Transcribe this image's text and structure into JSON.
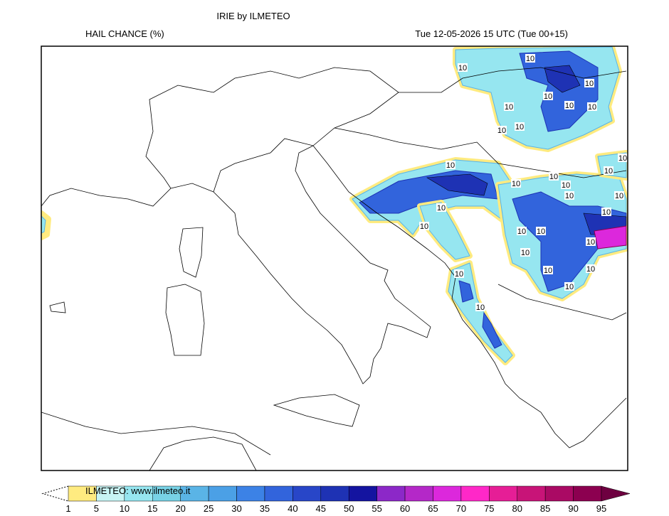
{
  "header": {
    "title": "IRIE by ILMETEO",
    "variable": "HAIL CHANCE (%)",
    "valid_time": "Tue 12-05-2026 15 UTC (Tue 00+15)"
  },
  "map": {
    "contour_labels": [
      "10",
      "10",
      "10",
      "10",
      "10",
      "10",
      "10",
      "10",
      "10",
      "10",
      "10",
      "10",
      "10",
      "10",
      "10",
      "10",
      "10",
      "10",
      "10",
      "10",
      "10",
      "10",
      "10",
      "10",
      "10",
      "10",
      "10",
      "10",
      "10"
    ]
  },
  "colorbar": {
    "watermark": "ILMETEO: www.ilmeteo.it",
    "levels": [
      1,
      5,
      10,
      15,
      20,
      25,
      30,
      35,
      40,
      45,
      50,
      55,
      60,
      65,
      70,
      75,
      80,
      85,
      90,
      95
    ],
    "colors": [
      "#ffeb80",
      "#c8f5f5",
      "#96e6f0",
      "#78d2e6",
      "#5ab4e6",
      "#4ba0e6",
      "#3c82e6",
      "#3264dc",
      "#2846c8",
      "#1e32b4",
      "#1414a0",
      "#8c28c8",
      "#b428c8",
      "#dc28dc",
      "#ff28c8",
      "#e61e96",
      "#c81478",
      "#aa0a64",
      "#8c0050"
    ],
    "over_color": "#6e0040"
  }
}
